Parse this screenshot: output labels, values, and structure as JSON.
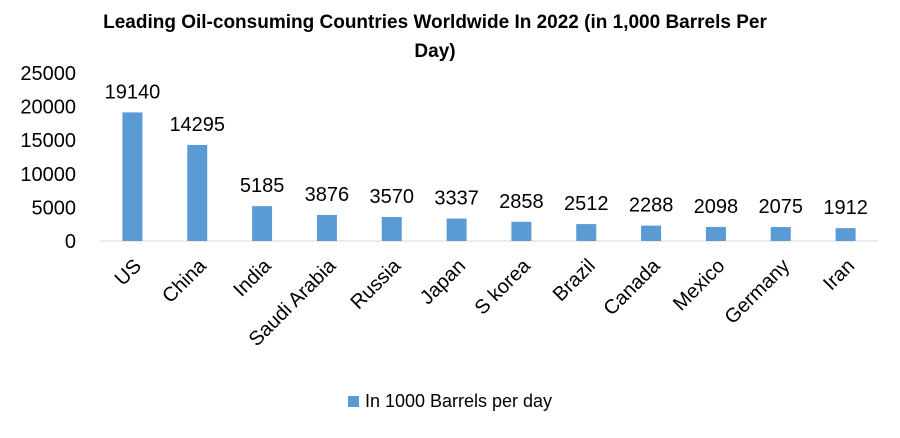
{
  "chart_data": {
    "type": "bar",
    "title": "Leading Oil-consuming Countries Worldwide In 2022 (in 1,000 Barrels Per Day)",
    "categories": [
      "US",
      "China",
      "India",
      "Saudi Arabia",
      "Russia",
      "Japan",
      "S korea",
      "Brazil",
      "Canada",
      "Mexico",
      "Germany",
      "Iran"
    ],
    "series": [
      {
        "name": "In 1000 Barrels per day",
        "values": [
          19140,
          14295,
          5185,
          3876,
          3570,
          3337,
          2858,
          2512,
          2288,
          2098,
          2075,
          1912
        ],
        "color": "#5b9bd5"
      }
    ],
    "ylim": [
      0,
      25000
    ],
    "yticks": [
      0,
      5000,
      10000,
      15000,
      20000,
      25000
    ],
    "grid": false,
    "legend": "bottom",
    "data_labels": true
  }
}
